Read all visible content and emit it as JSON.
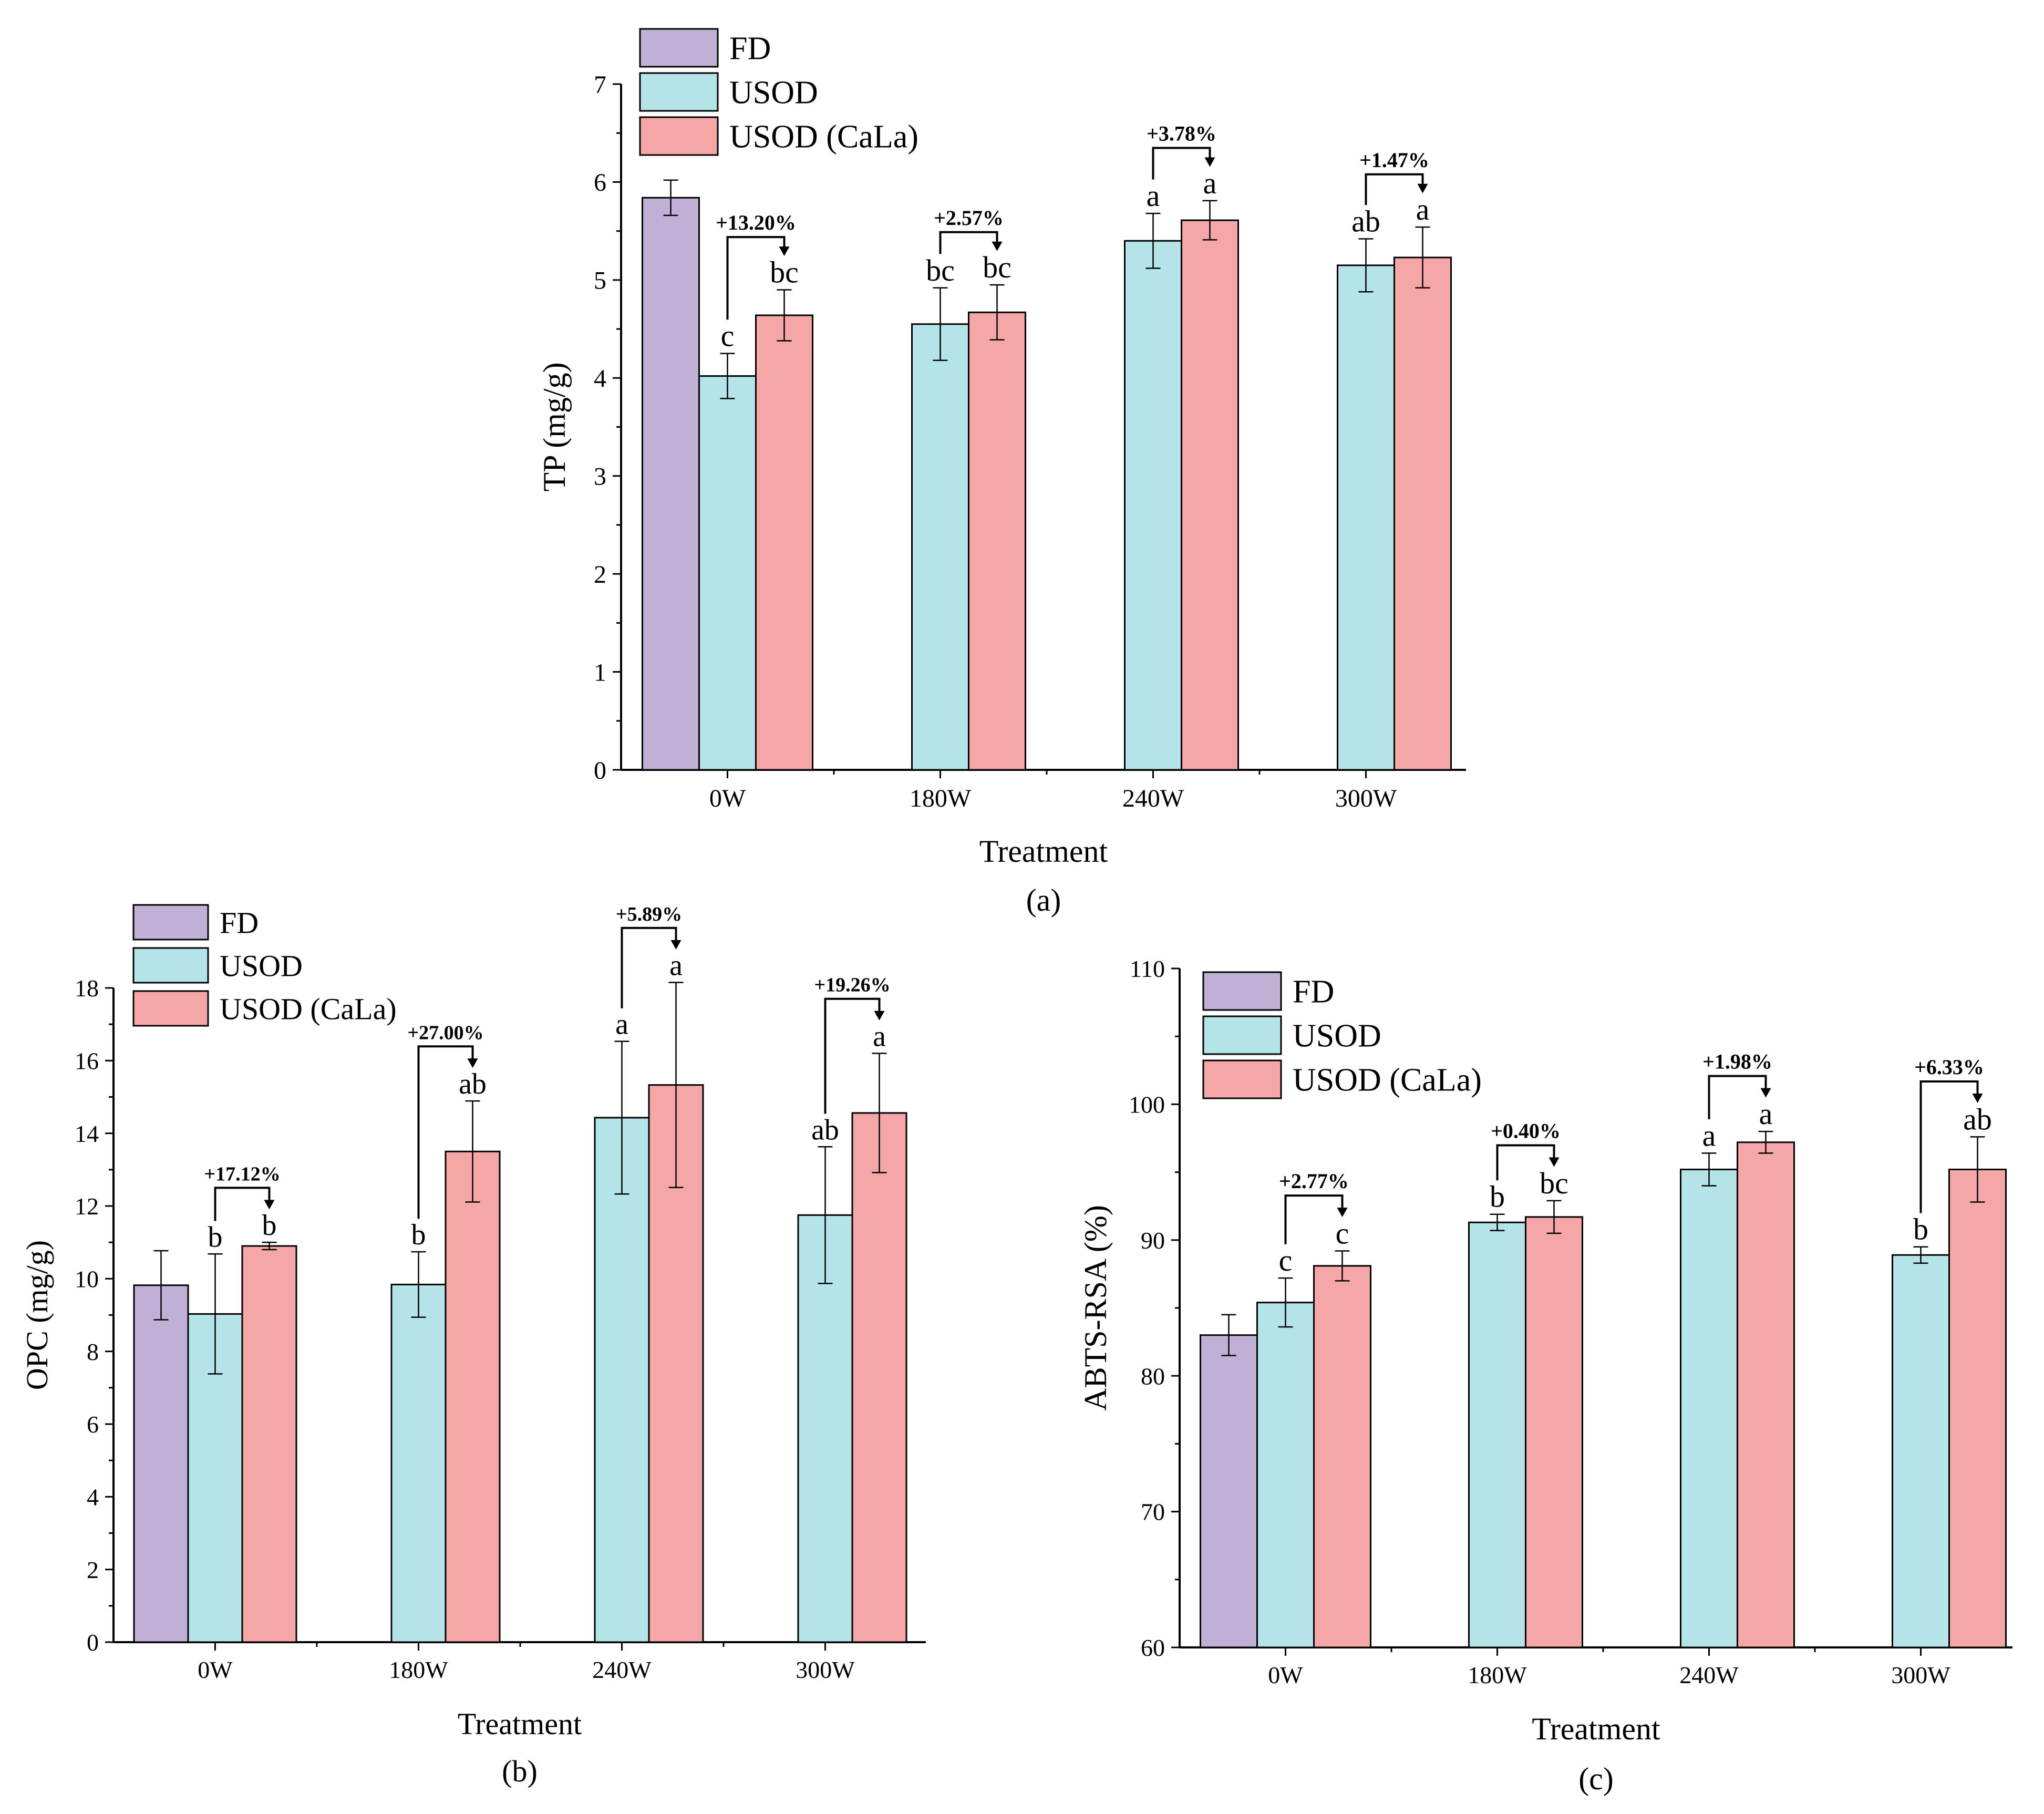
{
  "colors": {
    "FD": "#c0b0d6",
    "USOD": "#b4e3e8",
    "USOD (CaLa)": "#f5a6a7"
  },
  "chart_data": [
    {
      "panel": "(a)",
      "type": "bar",
      "xlabel": "Treatment",
      "ylabel": "TP (mg/g)",
      "ylim": [
        0,
        7
      ],
      "yticks": [
        0,
        1,
        2,
        3,
        4,
        5,
        6,
        7
      ],
      "categories": [
        "0W",
        "180W",
        "240W",
        "300W"
      ],
      "legend": [
        "FD",
        "USOD",
        "USOD (CaLa)"
      ],
      "series": [
        {
          "name": "FD",
          "values": [
            5.84,
            null,
            null,
            null
          ],
          "errors": [
            0.18,
            null,
            null,
            null
          ],
          "letters": [
            "",
            "",
            "",
            ""
          ]
        },
        {
          "name": "USOD",
          "values": [
            4.02,
            4.55,
            5.4,
            5.15
          ],
          "errors": [
            0.23,
            0.37,
            0.28,
            0.27
          ],
          "letters": [
            "c",
            "bc",
            "a",
            "ab"
          ]
        },
        {
          "name": "USOD (CaLa)",
          "values": [
            4.64,
            4.67,
            5.61,
            5.23
          ],
          "errors": [
            0.26,
            0.28,
            0.2,
            0.31
          ],
          "letters": [
            "bc",
            "bc",
            "a",
            "a"
          ]
        }
      ],
      "increases": [
        "+13.20%",
        "+2.57%",
        "+3.78%",
        "+1.47%"
      ]
    },
    {
      "panel": "(b)",
      "type": "bar",
      "xlabel": "Treatment",
      "ylabel": "OPC (mg/g)",
      "ylim": [
        0,
        18
      ],
      "yticks": [
        0,
        2,
        4,
        6,
        8,
        10,
        12,
        14,
        16,
        18
      ],
      "categories": [
        "0W",
        "180W",
        "240W",
        "300W"
      ],
      "legend": [
        "FD",
        "USOD",
        "USOD (CaLa)"
      ],
      "series": [
        {
          "name": "FD",
          "values": [
            9.82,
            null,
            null,
            null
          ],
          "errors": [
            0.95,
            null,
            null,
            null
          ],
          "letters": [
            "",
            "",
            "",
            ""
          ]
        },
        {
          "name": "USOD",
          "values": [
            9.03,
            9.84,
            14.43,
            11.75
          ],
          "errors": [
            1.65,
            0.9,
            2.1,
            1.88
          ],
          "letters": [
            "b",
            "b",
            "a",
            "ab"
          ]
        },
        {
          "name": "USOD (CaLa)",
          "values": [
            10.9,
            13.5,
            15.33,
            14.56
          ],
          "errors": [
            0.1,
            1.39,
            2.82,
            1.64
          ],
          "letters": [
            "b",
            "ab",
            "a",
            "a"
          ]
        }
      ],
      "increases": [
        "+17.12%",
        "+27.00%",
        "+5.89%",
        "+19.26%"
      ]
    },
    {
      "panel": "(c)",
      "type": "bar",
      "xlabel": "Treatment",
      "ylabel": "ABTS-RSA (%)",
      "ylim": [
        60,
        110
      ],
      "yticks": [
        60,
        70,
        80,
        90,
        100,
        110
      ],
      "categories": [
        "0W",
        "180W",
        "240W",
        "300W"
      ],
      "legend": [
        "FD",
        "USOD",
        "USOD (CaLa)"
      ],
      "series": [
        {
          "name": "FD",
          "values": [
            83.0,
            null,
            null,
            null
          ],
          "errors": [
            1.5,
            null,
            null,
            null
          ],
          "letters": [
            "",
            "",
            "",
            ""
          ]
        },
        {
          "name": "USOD",
          "values": [
            85.4,
            91.3,
            95.2,
            88.9
          ],
          "errors": [
            1.8,
            0.6,
            1.2,
            0.6
          ],
          "letters": [
            "c",
            "b",
            "a",
            "b"
          ]
        },
        {
          "name": "USOD (CaLa)",
          "values": [
            88.1,
            91.7,
            97.2,
            95.2
          ],
          "errors": [
            1.1,
            1.2,
            0.8,
            2.4
          ],
          "letters": [
            "c",
            "bc",
            "a",
            "ab"
          ]
        }
      ],
      "increases": [
        "+2.77%",
        "+0.40%",
        "+1.98%",
        "+6.33%"
      ]
    }
  ]
}
